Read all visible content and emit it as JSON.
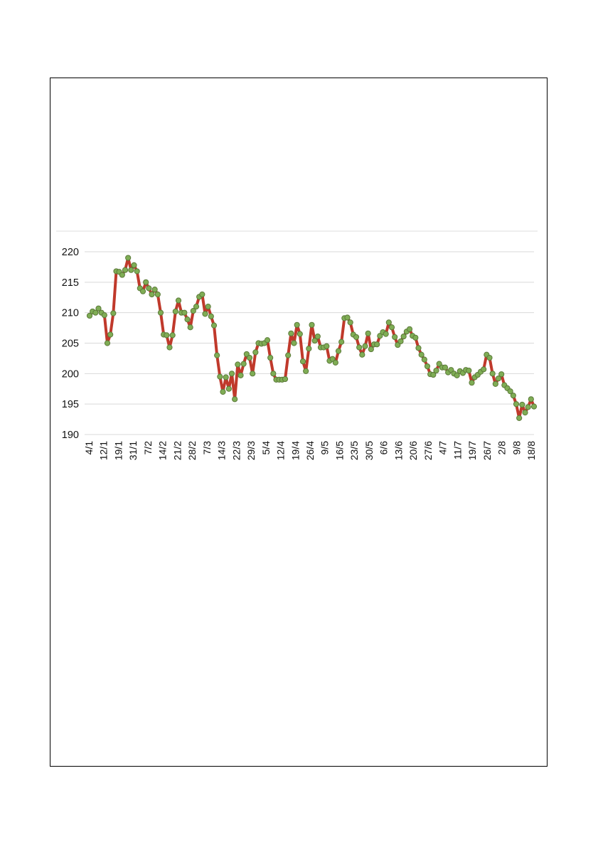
{
  "chart_data": {
    "type": "line",
    "title": "",
    "xlabel": "",
    "ylabel": "",
    "ylim": [
      190,
      220
    ],
    "yticks": [
      190,
      195,
      200,
      205,
      210,
      215,
      220
    ],
    "grid": "horizontal",
    "legend": "none",
    "line_color": "#c0392b",
    "marker_color": "#7fad55",
    "marker_edge_color": "#5c7a3a",
    "x_tick_labels": [
      "4/1",
      "12/1",
      "19/1",
      "31/1",
      "7/2",
      "14/2",
      "21/2",
      "28/2",
      "7/3",
      "14/3",
      "22/3",
      "29/3",
      "5/4",
      "12/4",
      "19/4",
      "26/4",
      "9/5",
      "16/5",
      "23/5",
      "30/5",
      "6/6",
      "13/6",
      "20/6",
      "27/6",
      "4/7",
      "11/7",
      "19/7",
      "26/7",
      "2/8",
      "9/8",
      "18/8"
    ],
    "series": [
      {
        "values": [
          209.5,
          210.2,
          210.0,
          210.7,
          210.0,
          209.6,
          205.0,
          206.4,
          209.9,
          216.8,
          216.7,
          216.2,
          217.0,
          219.0,
          217.0,
          217.8,
          216.8,
          214.0,
          213.5,
          215.0,
          214.0,
          213.0,
          213.8,
          213.0,
          210.0,
          206.4,
          206.3,
          204.3,
          206.3,
          210.2,
          212.0,
          210.0,
          210.0,
          208.9,
          207.6,
          210.3,
          211.0,
          212.6,
          213.0,
          209.8,
          211.0,
          209.4,
          207.9,
          203.0,
          199.5,
          197.0,
          199.4,
          197.5,
          200.0,
          195.8,
          201.5,
          199.7,
          201.6,
          203.2,
          202.6,
          200.0,
          203.5,
          205.0,
          204.9,
          205.0,
          205.5,
          202.6,
          200.0,
          199.0,
          199.0,
          199.0,
          199.1,
          203.0,
          206.6,
          205.0,
          208.0,
          206.5,
          202.0,
          200.4,
          204.1,
          208.0,
          205.4,
          206.1,
          204.3,
          204.3,
          204.5,
          202.1,
          202.4,
          201.8,
          203.7,
          205.2,
          209.1,
          209.2,
          208.4,
          206.4,
          206.0,
          204.3,
          203.1,
          204.5,
          206.6,
          204.0,
          204.8,
          204.8,
          206.2,
          206.8,
          206.5,
          208.4,
          207.6,
          206.0,
          204.7,
          205.3,
          206.1,
          206.9,
          207.3,
          206.2,
          205.9,
          204.2,
          203.1,
          202.3,
          201.2,
          199.9,
          199.8,
          200.5,
          201.6,
          201.0,
          201.0,
          200.2,
          200.6,
          200.0,
          199.7,
          200.4,
          200.1,
          200.6,
          200.5,
          198.5,
          199.4,
          199.8,
          200.3,
          200.7,
          203.1,
          202.6,
          200.0,
          198.3,
          199.2,
          199.9,
          198.1,
          197.6,
          197.1,
          196.4,
          195.0,
          192.7,
          194.9,
          193.6,
          194.5,
          195.8,
          194.6
        ]
      }
    ]
  }
}
